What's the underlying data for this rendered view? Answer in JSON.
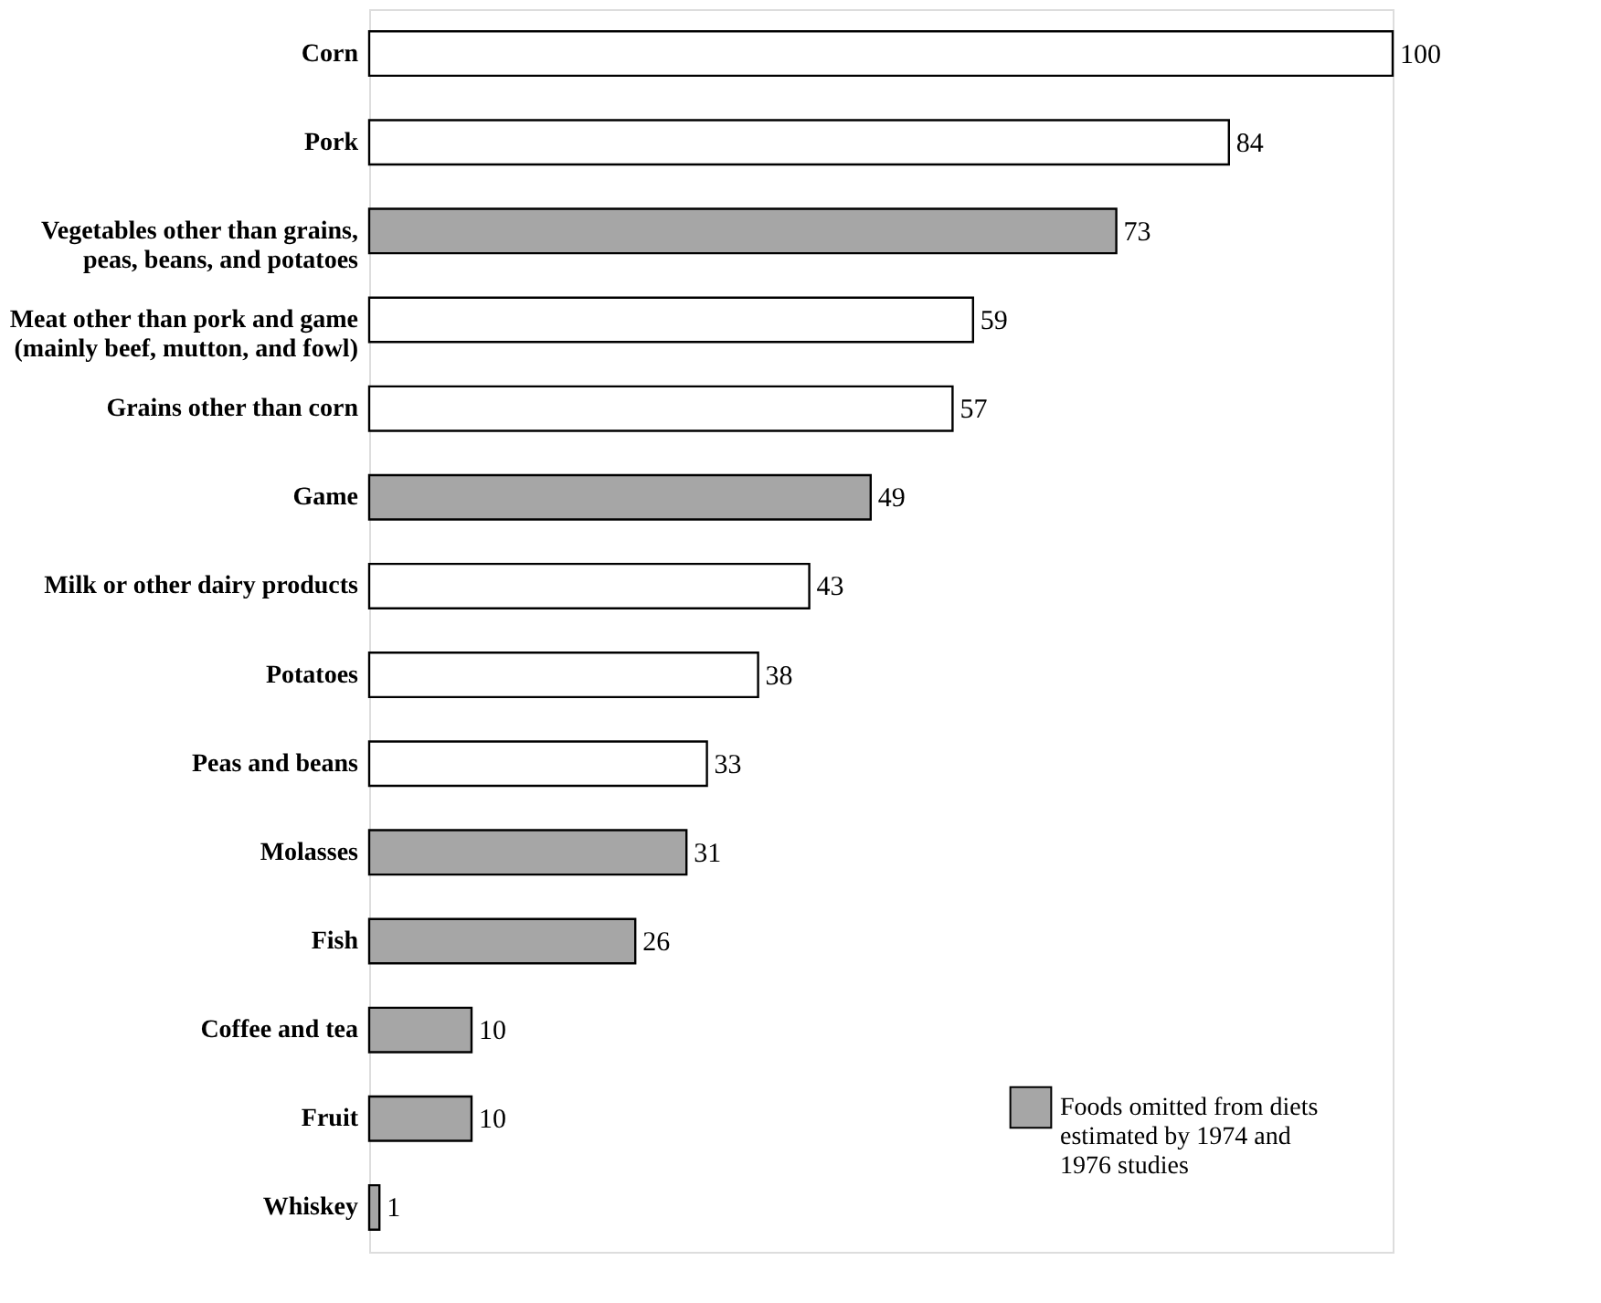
{
  "chart_data": {
    "type": "bar",
    "orientation": "horizontal",
    "data_labels": true,
    "legend": "bottom right",
    "categories": [
      "Corn",
      "Pork",
      "Vegetables other than grains, peas, beans, and potatoes",
      "Meat other than pork and game (mainly beef, mutton, and fowl)",
      "Grains other than corn",
      "Game",
      "Milk or other dairy products",
      "Potatoes",
      "Peas and beans",
      "Molasses",
      "Fish",
      "Coffee and tea",
      "Fruit",
      "Whiskey"
    ],
    "xlim": [
      0,
      100
    ],
    "series": [
      {
        "color": "#ffffff",
        "values": [
          100,
          84,
          null,
          59,
          57,
          null,
          43,
          38,
          33,
          null,
          null,
          null,
          null,
          null
        ]
      },
      {
        "name": "Foods omitted from diets estimated by 1974 and 1976 studies",
        "color": "#a6a6a6",
        "values": [
          null,
          null,
          73,
          null,
          null,
          49,
          null,
          null,
          null,
          31,
          26,
          10,
          10,
          1
        ]
      }
    ]
  }
}
